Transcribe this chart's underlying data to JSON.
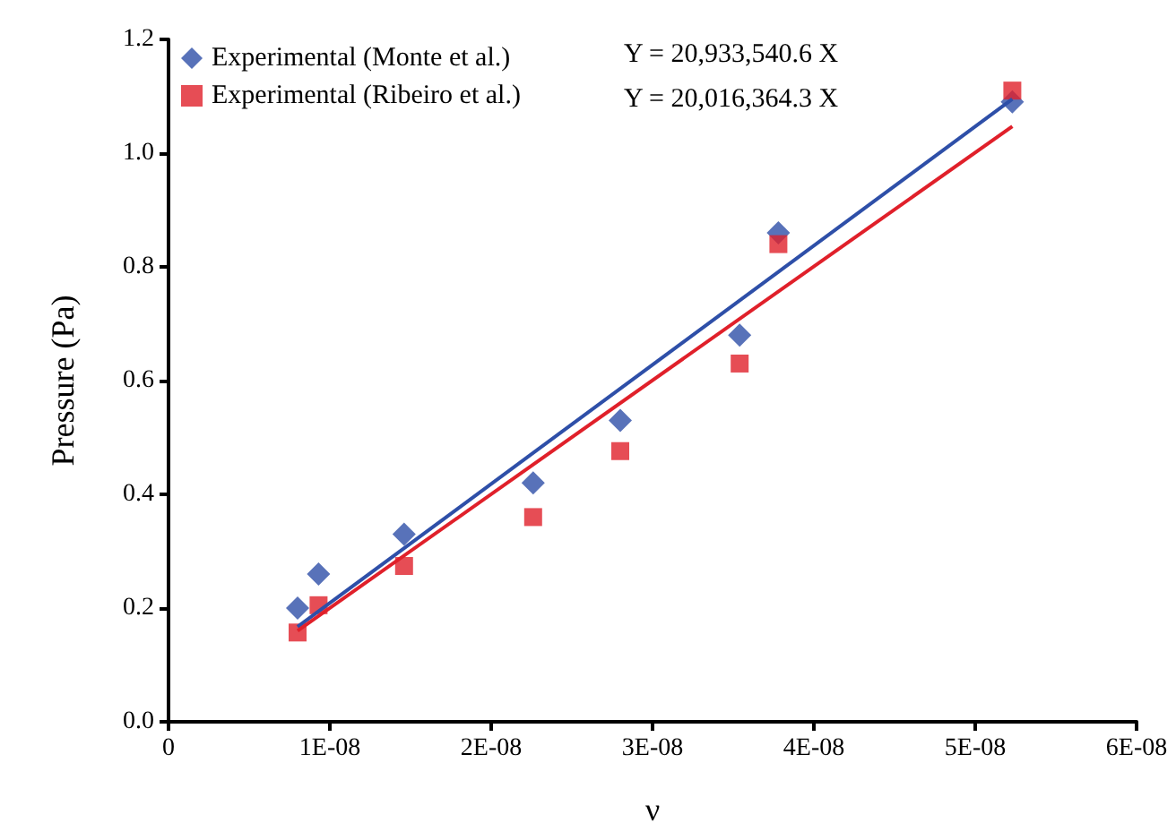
{
  "chart_data": {
    "type": "scatter",
    "xlabel": "ν",
    "ylabel": "Pressure (Pa)",
    "xlim": [
      0,
      6e-08
    ],
    "xticks": [
      0,
      {
        "value": 1e-08,
        "label": "1E-08"
      },
      {
        "value": 2e-08,
        "label": "2E-08"
      },
      {
        "value": 3e-08,
        "label": "3E-08"
      },
      {
        "value": 4e-08,
        "label": "4E-08"
      },
      {
        "value": 5e-08,
        "label": "5E-08"
      },
      {
        "value": 6e-08,
        "label": "6E-08"
      }
    ],
    "ylim": [
      0,
      1.2
    ],
    "yticks": [
      {
        "value": 0,
        "label": "0.0"
      },
      {
        "value": 0.2,
        "label": "0.2"
      },
      {
        "value": 0.4,
        "label": "0.4"
      },
      {
        "value": 0.6,
        "label": "0.6"
      },
      {
        "value": 0.8,
        "label": "0.8"
      },
      {
        "value": 1.0,
        "label": "1.0"
      },
      {
        "value": 1.2,
        "label": "1.2"
      }
    ],
    "grid": false,
    "legend": "top left",
    "annotations": [
      "Y = 20,933,540.6 X",
      "Y = 20,016,364.3 X"
    ],
    "series": [
      {
        "name": "Experimental (Monte et al.)",
        "color": "#2e4fa8",
        "marker": "diamond",
        "x": [
          8e-09,
          9.3e-09,
          1.46e-08,
          2.26e-08,
          2.8e-08,
          3.54e-08,
          3.78e-08,
          5.23e-08
        ],
        "values": [
          0.2,
          0.26,
          0.33,
          0.42,
          0.53,
          0.68,
          0.86,
          1.09
        ]
      },
      {
        "name": "Experimental (Ribeiro et al.)",
        "color": "#e0202a",
        "marker": "square",
        "x": [
          8e-09,
          9.3e-09,
          1.46e-08,
          2.26e-08,
          2.8e-08,
          3.54e-08,
          3.78e-08,
          5.23e-08
        ],
        "values": [
          0.157,
          0.205,
          0.274,
          0.36,
          0.476,
          0.63,
          0.84,
          1.11
        ]
      },
      {
        "type": "line",
        "color": "#2e4fa8",
        "x": [
          8e-09,
          5.23e-08
        ],
        "values": [
          0.167,
          1.095
        ]
      },
      {
        "type": "line",
        "color": "#e0202a",
        "x": [
          8e-09,
          5.23e-08
        ],
        "values": [
          0.16,
          1.047
        ]
      }
    ]
  }
}
